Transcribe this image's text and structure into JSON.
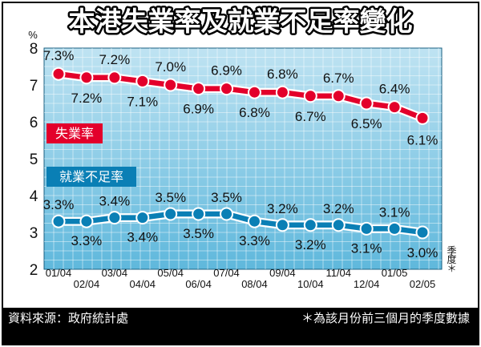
{
  "title": "本港失業率及就業不足率變化",
  "footer": {
    "source": "資料來源：政府統計處",
    "note": "＊為該月份前三個月的季度數據"
  },
  "chart_data": {
    "type": "line",
    "y_unit": "%",
    "ylim": [
      2,
      8
    ],
    "yticks": [
      2,
      3,
      4,
      5,
      6,
      7,
      8
    ],
    "x_axis_note": "季度＊",
    "grid": true,
    "categories": [
      "01/04",
      "02/04",
      "03/04",
      "04/04",
      "05/04",
      "06/04",
      "07/04",
      "08/04",
      "09/04",
      "10/04",
      "11/04",
      "12/04",
      "01/05",
      "02/05"
    ],
    "series": [
      {
        "name": "失業率",
        "color": "#e3002b",
        "values": [
          7.3,
          7.2,
          7.2,
          7.1,
          7.0,
          6.9,
          6.9,
          6.8,
          6.8,
          6.7,
          6.7,
          6.5,
          6.4,
          6.1
        ],
        "labels": [
          "7.3%",
          "7.2%",
          "7.2%",
          "7.1%",
          "7.0%",
          "6.9%",
          "6.9%",
          "6.8%",
          "6.8%",
          "6.7%",
          "6.7%",
          "6.5%",
          "6.4%",
          "6.1%"
        ]
      },
      {
        "name": "就業不足率",
        "color": "#0a7fb5",
        "values": [
          3.3,
          3.3,
          3.4,
          3.4,
          3.5,
          3.5,
          3.5,
          3.3,
          3.2,
          3.2,
          3.2,
          3.1,
          3.1,
          3.0
        ],
        "labels": [
          "3.3%",
          "3.3%",
          "3.4%",
          "3.4%",
          "3.5%",
          "3.5%",
          "3.5%",
          "3.3%",
          "3.2%",
          "3.2%",
          "3.2%",
          "3.1%",
          "3.1%",
          "3.0%"
        ]
      }
    ]
  }
}
